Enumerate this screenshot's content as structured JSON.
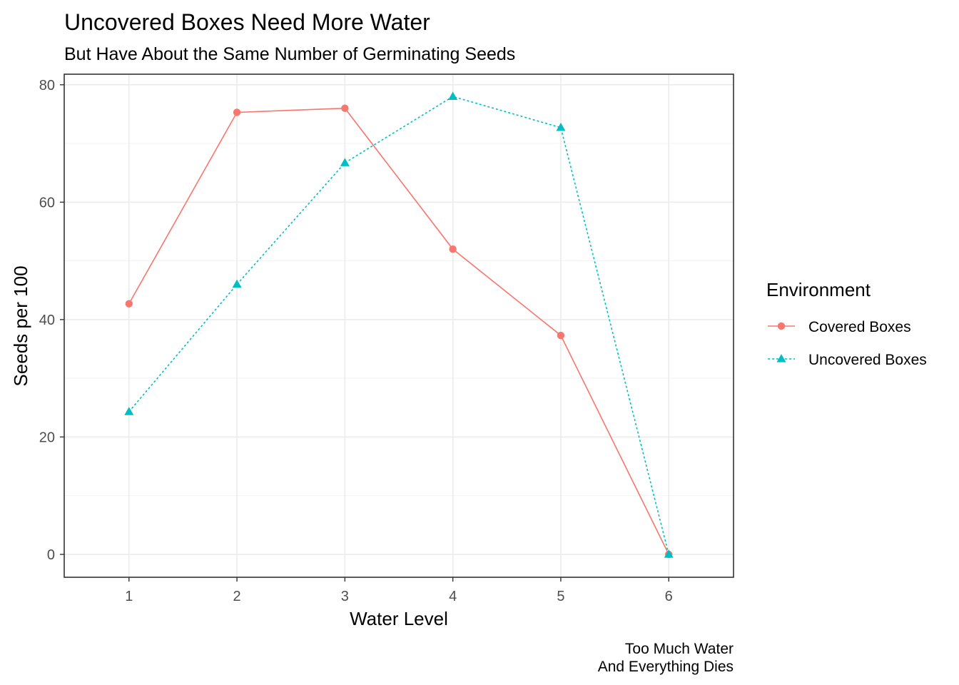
{
  "colors": {
    "covered": "#F8766D",
    "uncovered": "#00BFC4",
    "panel_border": "#333333",
    "grid": "#EBEBEB",
    "tick_text": "#4D4D4D"
  },
  "chart_data": {
    "type": "line",
    "title": "Uncovered Boxes Need More Water",
    "subtitle": "But Have About the Same Number of Germinating Seeds",
    "xlabel": "Water Level",
    "ylabel": "Seeds per 100",
    "caption_lines": [
      "Too Much Water",
      "And Everything Dies"
    ],
    "x": [
      1,
      2,
      3,
      4,
      5,
      6
    ],
    "x_ticks": [
      "1",
      "2",
      "3",
      "4",
      "5",
      "6"
    ],
    "y_ticks": [
      0,
      20,
      40,
      60,
      80
    ],
    "xlim": [
      0.4,
      6.6
    ],
    "ylim": [
      -3.9,
      81.8
    ],
    "grid": true,
    "legend": {
      "title": "Environment",
      "placement": "right"
    },
    "series": [
      {
        "name": "Covered Boxes",
        "color": "#F8766D",
        "line": "solid",
        "marker": "circle",
        "values": [
          42.7,
          75.3,
          76.0,
          52.0,
          37.3,
          0
        ]
      },
      {
        "name": "Uncovered Boxes",
        "color": "#00BFC4",
        "line": "dotted",
        "marker": "triangle",
        "values": [
          24.3,
          46.0,
          66.7,
          78.0,
          72.7,
          0
        ]
      }
    ]
  }
}
